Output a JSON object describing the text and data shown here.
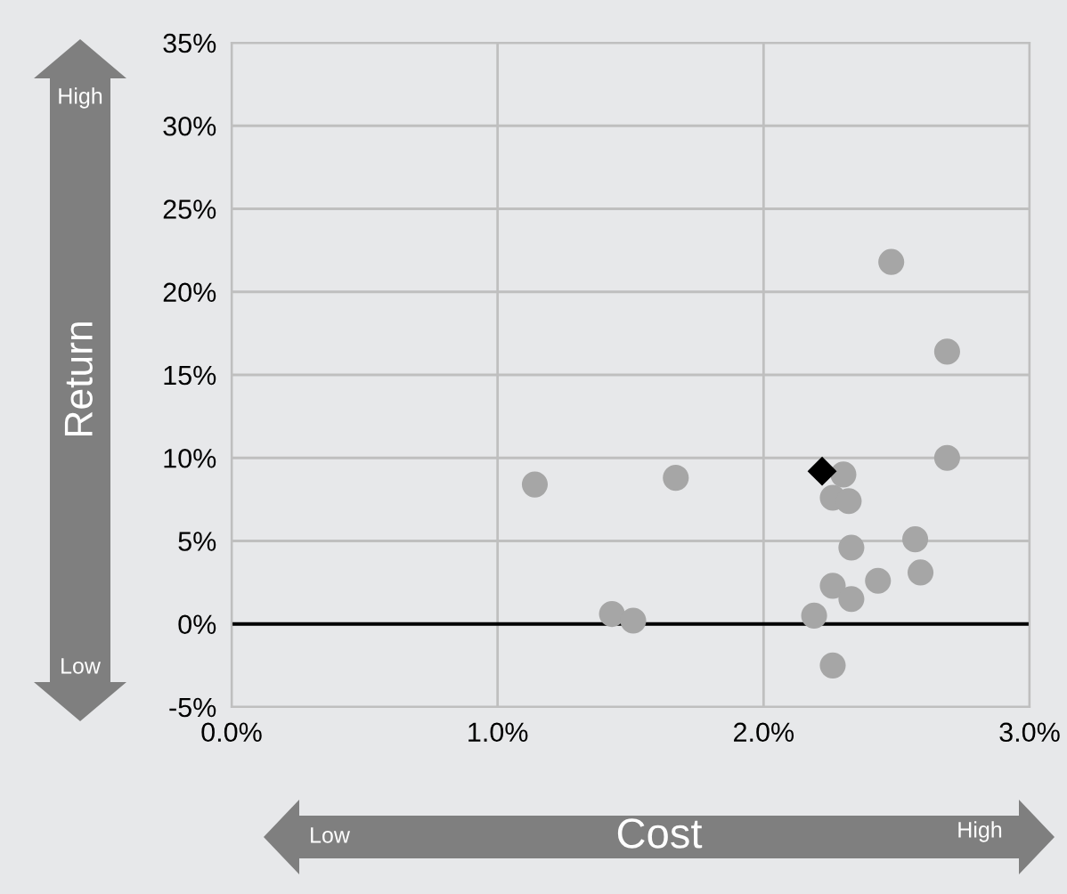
{
  "chart_data": {
    "type": "scatter",
    "xlabel": "Cost",
    "ylabel": "Return",
    "annotations": [
      "High",
      "Low",
      "Low",
      "High"
    ],
    "xlim": [
      0,
      3
    ],
    "ylim": [
      -5,
      35
    ],
    "xticks": [
      {
        "value": 0,
        "label": "0.0%"
      },
      {
        "value": 1,
        "label": "1.0%"
      },
      {
        "value": 2,
        "label": "2.0%"
      },
      {
        "value": 3,
        "label": "3.0%"
      }
    ],
    "yticks": [
      {
        "value": -5,
        "label": "-5%"
      },
      {
        "value": 0,
        "label": "0%"
      },
      {
        "value": 5,
        "label": "5%"
      },
      {
        "value": 10,
        "label": "10%"
      },
      {
        "value": 15,
        "label": "15%"
      },
      {
        "value": 20,
        "label": "20%"
      },
      {
        "value": 25,
        "label": "25%"
      },
      {
        "value": 30,
        "label": "30%"
      },
      {
        "value": 35,
        "label": "35%"
      }
    ],
    "grid": true,
    "ref_lines": [
      {
        "axis": "y",
        "value": 0,
        "color": "#000000"
      }
    ],
    "series": [
      {
        "color": "#a6a6a6",
        "marker": "circle",
        "x": [
          2.48,
          2.69,
          2.69,
          2.3,
          2.26,
          2.32,
          2.33,
          2.57,
          2.59,
          2.43,
          2.26,
          2.33,
          2.19,
          2.26,
          1.14,
          1.67,
          1.43,
          1.51
        ],
        "values": [
          21.8,
          16.4,
          10.0,
          9.0,
          7.6,
          7.4,
          4.6,
          5.1,
          3.1,
          2.6,
          2.3,
          1.5,
          0.5,
          -2.5,
          8.4,
          8.8,
          0.6,
          0.2
        ]
      },
      {
        "color": "#000000",
        "marker": "diamond",
        "x": [
          2.22
        ],
        "values": [
          9.2
        ]
      }
    ]
  }
}
